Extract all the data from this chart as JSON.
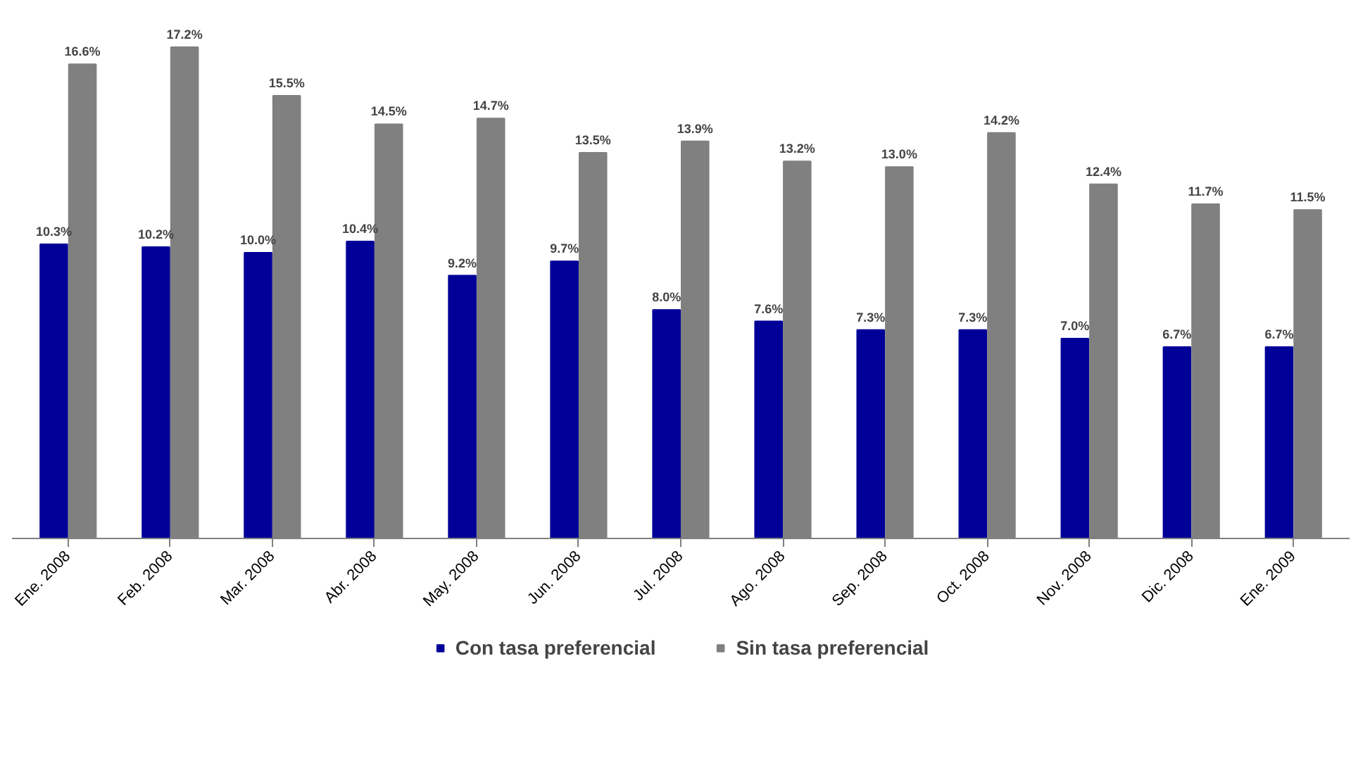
{
  "chart_data": {
    "type": "bar",
    "categories": [
      "Ene. 2008",
      "Feb. 2008",
      "Mar. 2008",
      "Abr. 2008",
      "May. 2008",
      "Jun. 2008",
      "Jul. 2008",
      "Ago. 2008",
      "Sep. 2008",
      "Oct. 2008",
      "Nov. 2008",
      "Dic. 2008",
      "Ene. 2009"
    ],
    "series": [
      {
        "name": "Con tasa preferencial",
        "color": "#000099",
        "values": [
          10.3,
          10.2,
          10.0,
          10.4,
          9.2,
          9.7,
          8.0,
          7.6,
          7.3,
          7.3,
          7.0,
          6.7,
          6.7
        ],
        "value_labels": [
          "10.3%",
          "10.2%",
          "10.0%",
          "10.4%",
          "9.2%",
          "9.7%",
          "8.0%",
          "7.6%",
          "7.3%",
          "7.3%",
          "7.0%",
          "6.7%",
          "6.7%"
        ]
      },
      {
        "name": "Sin tasa preferencial",
        "color": "#808080",
        "values": [
          16.6,
          17.2,
          15.5,
          14.5,
          14.7,
          13.5,
          13.9,
          13.2,
          13.0,
          14.2,
          12.4,
          11.7,
          11.5
        ],
        "value_labels": [
          "16.6%",
          "17.2%",
          "15.5%",
          "14.5%",
          "14.7%",
          "13.5%",
          "13.9%",
          "13.2%",
          "13.0%",
          "14.2%",
          "12.4%",
          "11.7%",
          "11.5%"
        ]
      }
    ],
    "legend": "bottom",
    "grid": false,
    "tick_labels": "x"
  }
}
